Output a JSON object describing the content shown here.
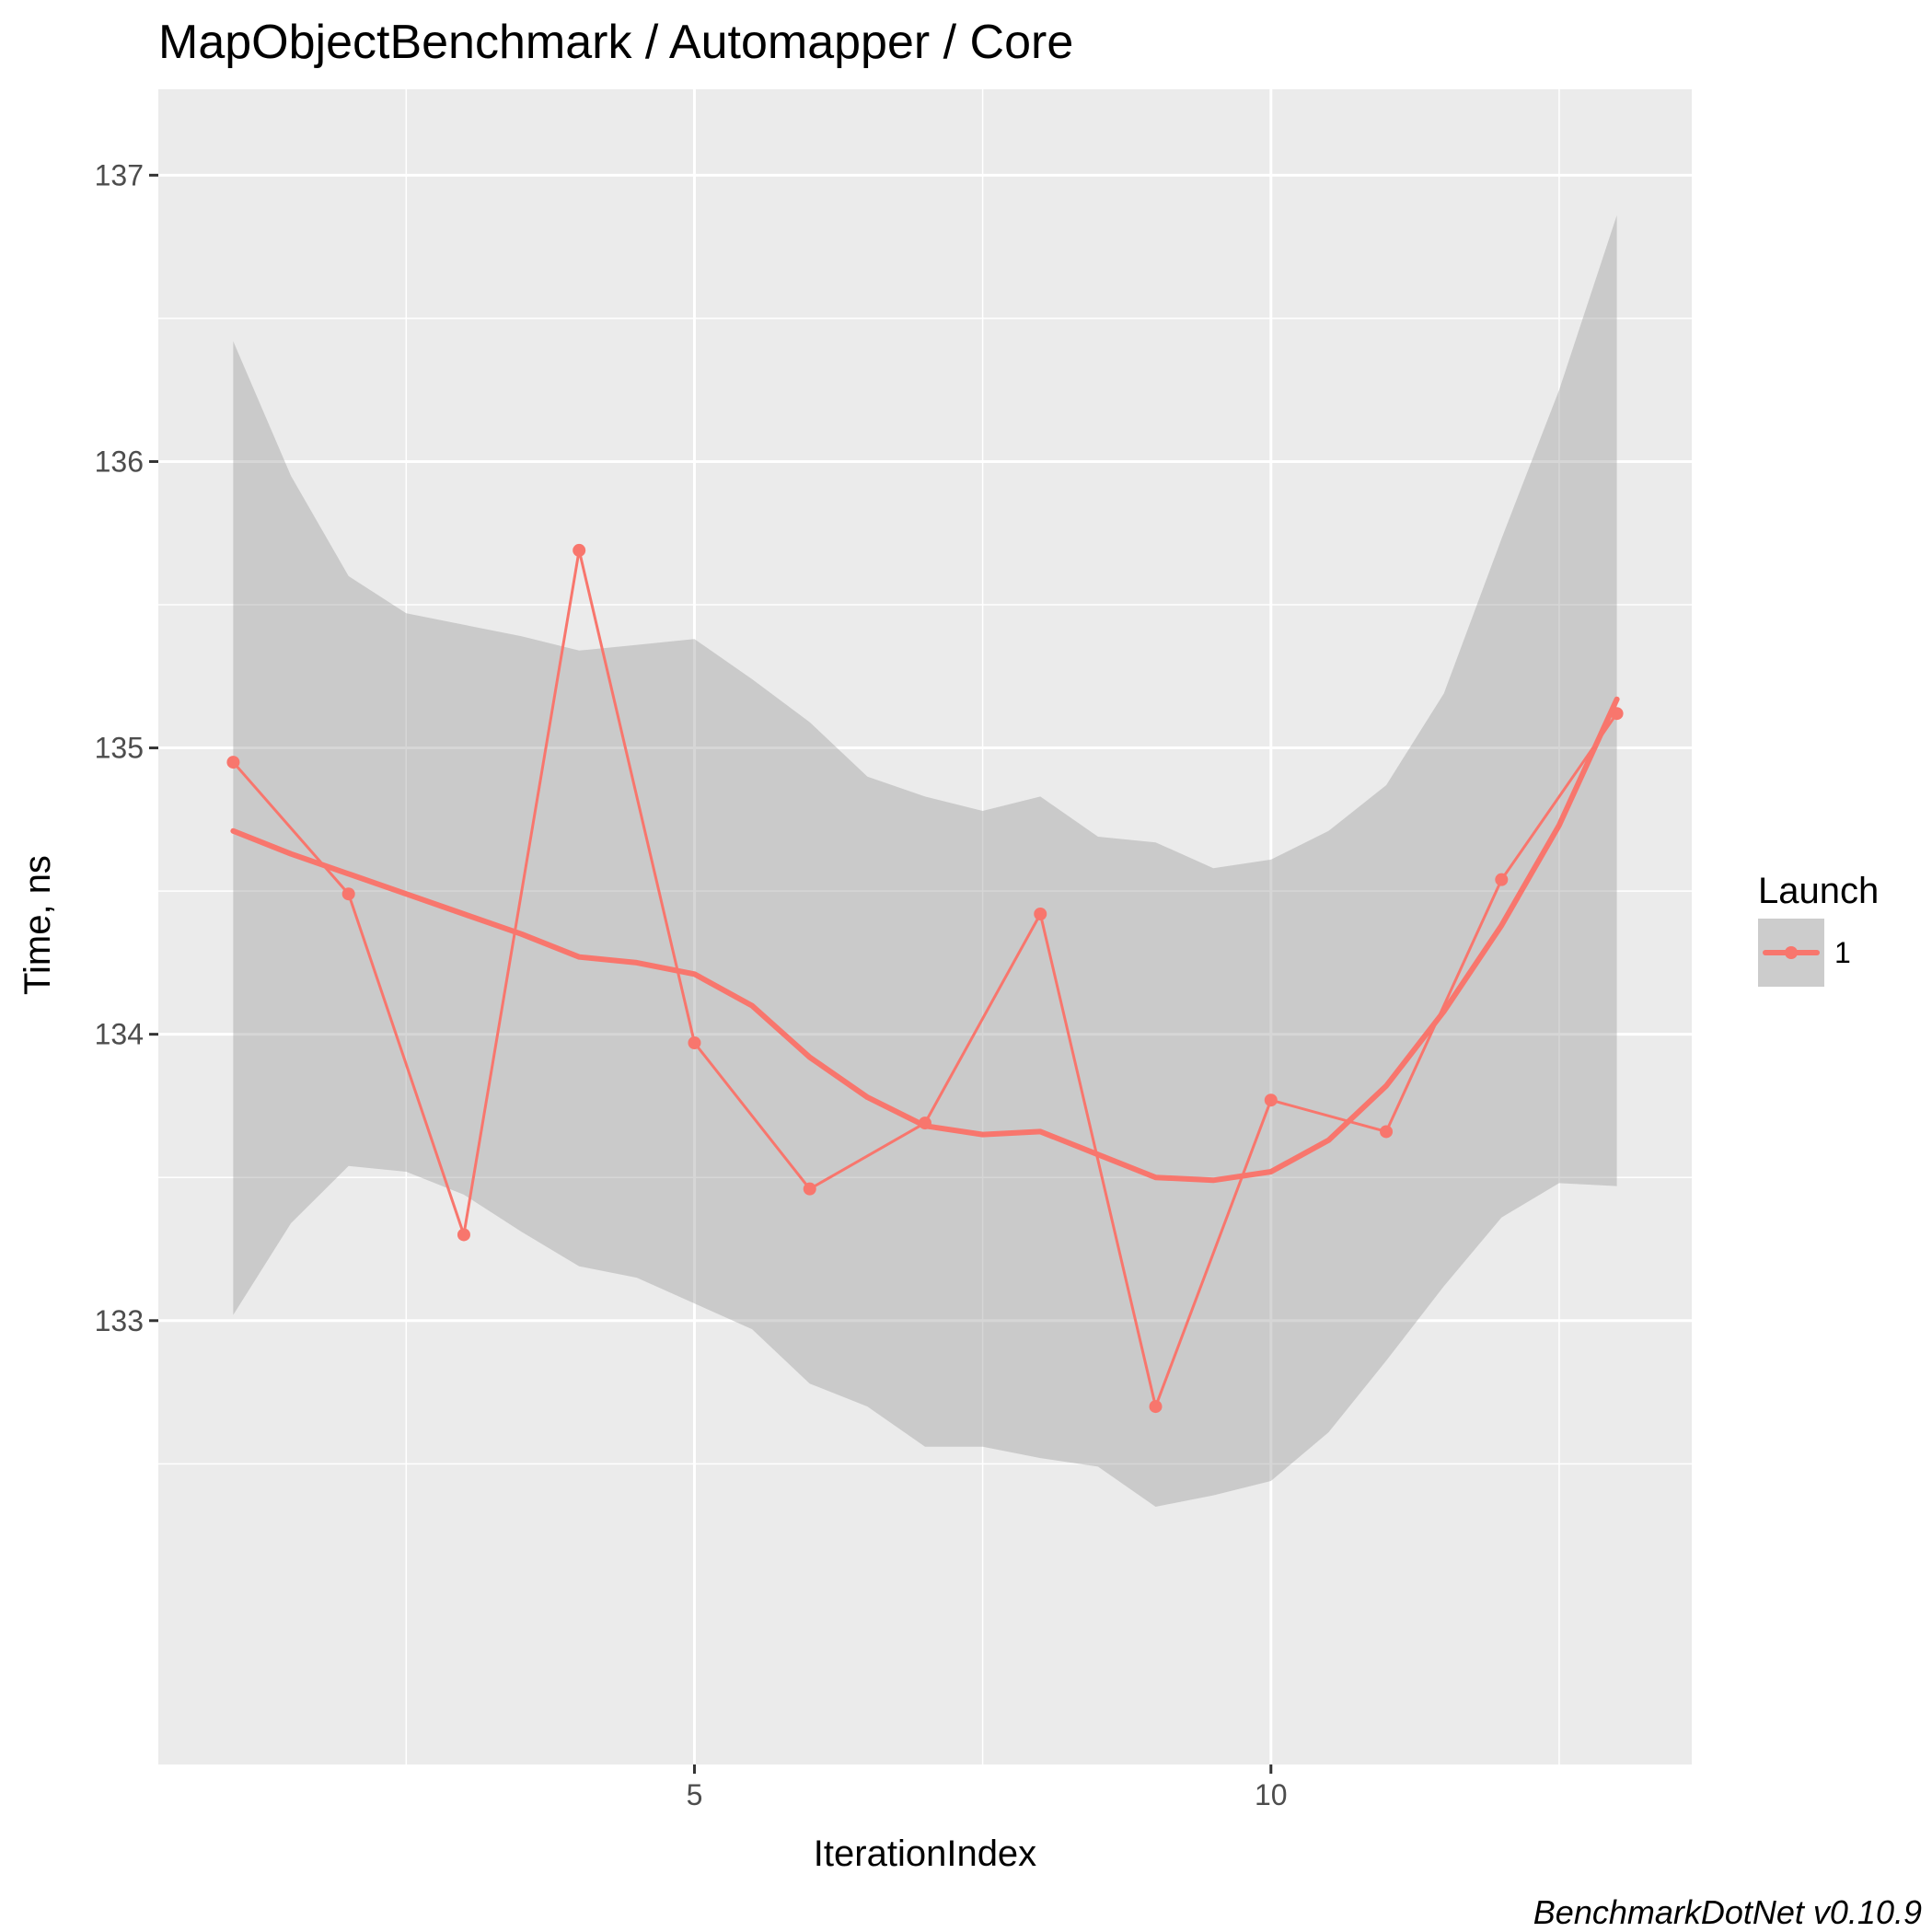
{
  "chart_data": {
    "type": "line",
    "title": "MapObjectBenchmark / Automapper / Core",
    "xlabel": "IterationIndex",
    "ylabel": "Time, ns",
    "xlim": [
      0.35,
      13.65
    ],
    "ylim": [
      131.45,
      137.3
    ],
    "x_ticks": [
      5,
      10
    ],
    "x_tick_labels": [
      "5",
      "10"
    ],
    "x_minor_ticks": [
      2.5,
      7.5,
      12.5
    ],
    "y_ticks": [
      133,
      134,
      135,
      136,
      137
    ],
    "y_tick_labels": [
      "133",
      "134",
      "135",
      "136",
      "137"
    ],
    "y_minor_ticks": [
      132.5,
      133.5,
      134.5,
      135.5,
      136.5
    ],
    "grid": true,
    "legend": {
      "title": "Launch",
      "position": "right",
      "entries": [
        "1"
      ]
    },
    "caption": "BenchmarkDotNet v0.10.9",
    "colors": {
      "series": "#f8766d",
      "ribbon": "#999999",
      "panel": "#ebebeb",
      "grid": "#ffffff"
    },
    "series": [
      {
        "name": "1",
        "x": [
          1,
          2,
          3,
          4,
          5,
          6,
          7,
          8,
          9,
          10,
          11,
          12,
          13
        ],
        "values": [
          134.95,
          134.49,
          133.3,
          135.69,
          133.97,
          133.46,
          133.69,
          134.42,
          132.7,
          133.77,
          133.66,
          134.54,
          135.12
        ]
      }
    ],
    "smooth": {
      "x": [
        1,
        1.5,
        2,
        2.5,
        3,
        3.5,
        4,
        4.5,
        5,
        5.5,
        6,
        6.5,
        7,
        7.5,
        8,
        8.5,
        9,
        9.5,
        10,
        10.5,
        11,
        11.5,
        12,
        12.5,
        13
      ],
      "values": [
        134.71,
        134.63,
        134.56,
        134.49,
        134.42,
        134.35,
        134.27,
        134.25,
        134.21,
        134.1,
        133.92,
        133.78,
        133.68,
        133.65,
        133.66,
        133.58,
        133.5,
        133.49,
        133.52,
        133.63,
        133.82,
        134.08,
        134.38,
        134.73,
        135.17
      ],
      "lower": [
        133.02,
        133.34,
        133.54,
        133.52,
        133.44,
        133.31,
        133.19,
        133.15,
        133.06,
        132.97,
        132.78,
        132.7,
        132.56,
        132.56,
        132.52,
        132.49,
        132.35,
        132.39,
        132.44,
        132.61,
        132.86,
        133.12,
        133.36,
        133.48,
        133.47
      ],
      "upper": [
        136.42,
        135.95,
        135.6,
        135.47,
        135.43,
        135.39,
        135.34,
        135.36,
        135.38,
        135.24,
        135.09,
        134.9,
        134.83,
        134.78,
        134.83,
        134.69,
        134.67,
        134.58,
        134.61,
        134.71,
        134.87,
        135.19,
        135.73,
        136.25,
        136.86
      ]
    }
  }
}
